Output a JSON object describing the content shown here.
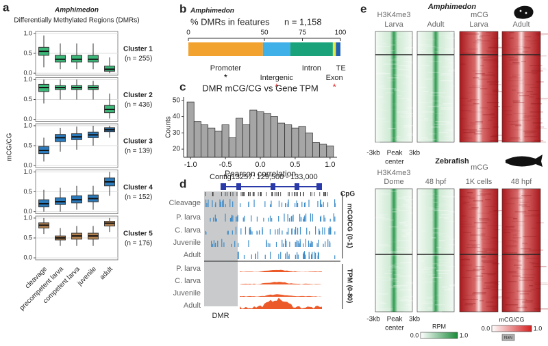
{
  "panel_labels": [
    "a",
    "b",
    "c",
    "d",
    "e"
  ],
  "chart_data": [
    {
      "type": "box",
      "title": "Amphimedon",
      "subtitle": "Differentially Methylated Regions (DMRs)",
      "y_label": "mCG/CG",
      "categories": [
        "cleavage",
        "precompetent larva",
        "competent larva",
        "juvenile",
        "adult"
      ],
      "ylim": [
        -0.05,
        1.05
      ],
      "yticks": [
        {
          "value": 0,
          "label": "0.0"
        },
        {
          "value": 0.5,
          "label": "0.5"
        },
        {
          "value": 1,
          "label": "1.0"
        }
      ],
      "grid": true,
      "panels": [
        {
          "name": "Cluster 1",
          "n_label": "(n = 255)",
          "color": "#3cb878",
          "boxes": [
            {
              "min": 0.15,
              "q1": 0.45,
              "median": 0.55,
              "q3": 0.65,
              "max": 0.95
            },
            {
              "min": 0.1,
              "q1": 0.28,
              "median": 0.35,
              "q3": 0.45,
              "max": 0.75
            },
            {
              "min": 0.1,
              "q1": 0.28,
              "median": 0.35,
              "q3": 0.45,
              "max": 0.75
            },
            {
              "min": 0.1,
              "q1": 0.28,
              "median": 0.35,
              "q3": 0.45,
              "max": 0.75
            },
            {
              "min": 0,
              "q1": 0.05,
              "median": 0.1,
              "q3": 0.18,
              "max": 0.4
            }
          ]
        },
        {
          "name": "Cluster 2",
          "n_label": "(n = 436)",
          "color": "#3cb878",
          "boxes": [
            {
              "min": 0.4,
              "q1": 0.7,
              "median": 0.8,
              "q3": 0.88,
              "max": 1.0
            },
            {
              "min": 0.5,
              "q1": 0.75,
              "median": 0.8,
              "q3": 0.85,
              "max": 1.0
            },
            {
              "min": 0.5,
              "q1": 0.75,
              "median": 0.8,
              "q3": 0.85,
              "max": 1.0
            },
            {
              "min": 0.5,
              "q1": 0.75,
              "median": 0.8,
              "q3": 0.85,
              "max": 0.97
            },
            {
              "min": 0.02,
              "q1": 0.17,
              "median": 0.25,
              "q3": 0.35,
              "max": 0.65
            }
          ]
        },
        {
          "name": "Cluster 3",
          "n_label": "(n = 139)",
          "color": "#2b7bbd",
          "boxes": [
            {
              "min": 0.1,
              "q1": 0.3,
              "median": 0.38,
              "q3": 0.48,
              "max": 0.7
            },
            {
              "min": 0.35,
              "q1": 0.6,
              "median": 0.7,
              "q3": 0.78,
              "max": 0.95
            },
            {
              "min": 0.4,
              "q1": 0.65,
              "median": 0.72,
              "q3": 0.8,
              "max": 0.98
            },
            {
              "min": 0.5,
              "q1": 0.7,
              "median": 0.77,
              "q3": 0.84,
              "max": 1.0
            },
            {
              "min": 0.7,
              "q1": 0.85,
              "median": 0.9,
              "q3": 0.95,
              "max": 1.0
            }
          ]
        },
        {
          "name": "Cluster 4",
          "n_label": "(n = 152)",
          "color": "#2b7bbd",
          "boxes": [
            {
              "min": 0,
              "q1": 0.12,
              "median": 0.2,
              "q3": 0.3,
              "max": 0.55
            },
            {
              "min": 0,
              "q1": 0.18,
              "median": 0.25,
              "q3": 0.35,
              "max": 0.6
            },
            {
              "min": 0.05,
              "q1": 0.22,
              "median": 0.3,
              "q3": 0.4,
              "max": 0.65
            },
            {
              "min": 0.05,
              "q1": 0.25,
              "median": 0.33,
              "q3": 0.42,
              "max": 0.65
            },
            {
              "min": 0.4,
              "q1": 0.65,
              "median": 0.75,
              "q3": 0.85,
              "max": 1.0
            }
          ]
        },
        {
          "name": "Cluster 5",
          "n_label": "(n = 176)",
          "color": "#b48250",
          "boxes": [
            {
              "min": 0.6,
              "q1": 0.75,
              "median": 0.82,
              "q3": 0.88,
              "max": 1.0
            },
            {
              "min": 0.3,
              "q1": 0.45,
              "median": 0.5,
              "q3": 0.55,
              "max": 0.75
            },
            {
              "min": 0.3,
              "q1": 0.47,
              "median": 0.55,
              "q3": 0.62,
              "max": 0.8
            },
            {
              "min": 0.3,
              "q1": 0.47,
              "median": 0.55,
              "q3": 0.62,
              "max": 0.8
            },
            {
              "min": 0.65,
              "q1": 0.8,
              "median": 0.87,
              "q3": 0.92,
              "max": 1.0
            }
          ]
        }
      ]
    },
    {
      "type": "stacked-bar",
      "title": "Amphimedon",
      "subtitle": "% DMRs in features",
      "annotation": "n = 1,158",
      "xlim": [
        0,
        100
      ],
      "xticks": [
        0,
        50,
        75,
        100
      ],
      "series": [
        {
          "name": "Promoter",
          "color": "#f2a22e",
          "values": [
            49
          ],
          "marker": "*",
          "marker_color": "#000000"
        },
        {
          "name": "Intergenic",
          "color": "#3fb0e8",
          "values": [
            18
          ],
          "marker": "*",
          "marker_color": "#e02020"
        },
        {
          "name": "Intron",
          "color": "#1aa37a",
          "values": [
            28
          ]
        },
        {
          "name": "Exon",
          "color": "#e6e64a",
          "values": [
            2
          ],
          "marker": "*",
          "marker_color": "#e02020"
        },
        {
          "name": "TE",
          "color": "#2060b0",
          "values": [
            3
          ]
        }
      ]
    },
    {
      "type": "histogram",
      "title": "DMR mCG/CG vs Gene TPM",
      "x_label": "Pearson correlation",
      "y_label": "Counts",
      "color": "#a6a6a6",
      "bins": [
        -1.05,
        -0.95,
        -0.85,
        -0.75,
        -0.65,
        -0.55,
        -0.45,
        -0.35,
        -0.25,
        -0.15,
        -0.05,
        0.05,
        0.15,
        0.25,
        0.35,
        0.45,
        0.55,
        0.65,
        0.75,
        0.85,
        0.95,
        1.05
      ],
      "values": [
        49,
        37,
        35,
        33,
        31,
        35,
        27,
        39,
        35,
        44,
        43,
        42,
        40,
        36,
        35,
        33,
        34,
        30,
        24,
        23,
        22
      ],
      "xlim": [
        -1.1,
        1.1
      ],
      "xticks": [
        {
          "value": -1,
          "label": "-1.0"
        },
        -0.5,
        {
          "value": 0,
          "label": "0.0"
        },
        0.5,
        {
          "value": 1,
          "label": "1.0"
        }
      ],
      "ylim": [
        15,
        52
      ],
      "yticks": [
        20,
        30,
        40,
        50
      ]
    }
  ],
  "browser": {
    "title": "Contig13257: 129,500 - 133,000",
    "cpg_label": "CpG",
    "methylation_label": "mCG/CG (0-1)",
    "methylation_tracks": [
      "Cleavage",
      "P. larva",
      "C. larva",
      "Juvenile",
      "Adult"
    ],
    "expression_label": "TPM (0-80)",
    "expression_tracks": [
      "P. larva",
      "C. larva",
      "Juvenile",
      "Adult"
    ],
    "region_label": "DMR"
  },
  "heatmaps": {
    "groups": [
      {
        "species": "Amphimedon",
        "mark_labels": [
          "H3K4me3",
          "mCG"
        ],
        "columns": [
          "Larva",
          "Adult",
          "Larva",
          "Adult"
        ],
        "axis_labels": [
          "-3kb",
          "Peak",
          "center",
          "3kb"
        ]
      },
      {
        "species": "Zebrafish",
        "mark_labels": [
          "H3K4me3",
          "mCG"
        ],
        "columns": [
          "Dome",
          "48 hpf",
          "1K cells",
          "48 hpf"
        ],
        "axis_labels": [
          "-3kb",
          "Peak",
          "center",
          "3kb"
        ]
      }
    ],
    "scales": [
      {
        "title": "RPM",
        "colors": [
          "#ffffff",
          "#1a8a3a"
        ],
        "ticks": [
          {
            "value": 0,
            "label": "0.0"
          },
          {
            "value": 1,
            "label": "1.0"
          }
        ]
      },
      {
        "title": "mCG/CG",
        "colors": [
          "#ffffff",
          "#d42020"
        ],
        "ticks": [
          {
            "value": 0,
            "label": "0.0"
          },
          {
            "value": 1,
            "label": "1.0"
          }
        ],
        "na_label": "NaN"
      }
    ]
  }
}
